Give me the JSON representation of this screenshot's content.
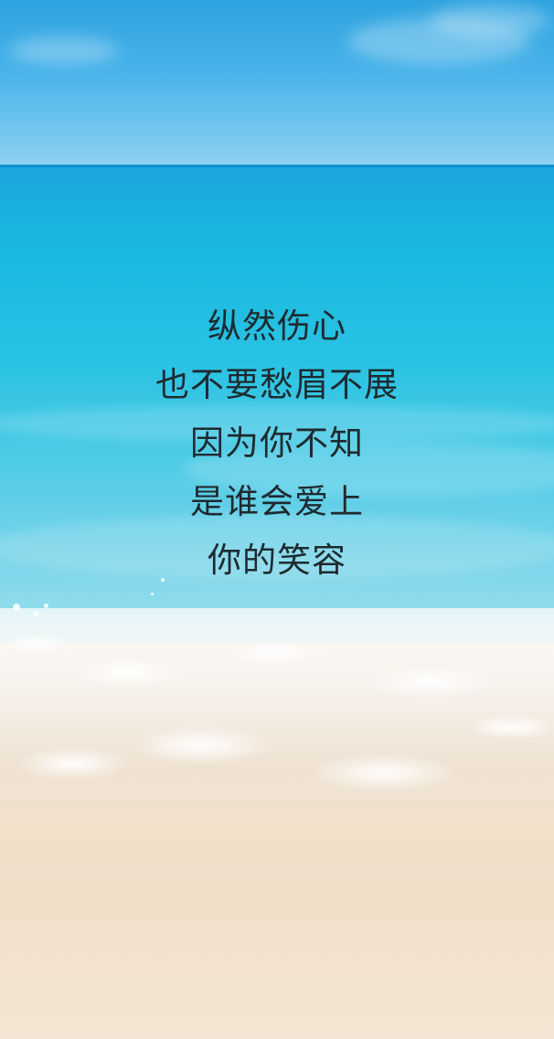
{
  "poem": {
    "lines": [
      "纵然伤心",
      "也不要愁眉不展",
      "因为你不知",
      "是谁会爱上",
      "你的笑容"
    ]
  },
  "colors": {
    "sky": "#2ea3e0",
    "sea": "#1ab8e0",
    "foam": "#ffffff",
    "sand": "#f1e0cb",
    "text": "#1e2a2f"
  }
}
